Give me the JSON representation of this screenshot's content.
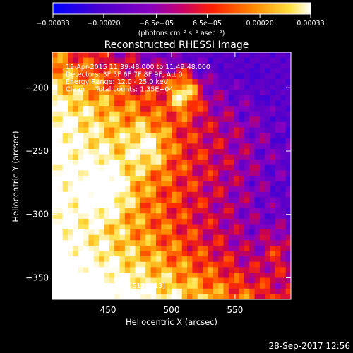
{
  "chart_data": {
    "type": "heatmap",
    "title": "Reconstructed RHESSI Image",
    "xlabel": "Heliocentric X (arcsec)",
    "ylabel": "Heliocentric Y (arcsec)",
    "xlim": [
      406,
      594
    ],
    "ylim": [
      -367,
      -172
    ],
    "x_ticks": [
      450,
      500,
      550
    ],
    "x_tick_labels": [
      "450",
      "500",
      "550"
    ],
    "y_ticks": [
      -200,
      -250,
      -300,
      -350
    ],
    "y_tick_labels": [
      "−200",
      "−250",
      "−300",
      "−350"
    ],
    "colorbar": {
      "range": [
        -0.00033,
        0.00033
      ],
      "ticks": [
        -0.00033,
        -0.0002,
        -6.5e-05,
        6.5e-05,
        0.0002,
        0.00033
      ],
      "tick_labels": [
        "−0.00033",
        "−0.00020",
        "−6.5e−05",
        "6.5e−05",
        "0.00020",
        "0.00033"
      ],
      "units": "(photons cm⁻² s⁻¹ asec⁻²)",
      "colors": [
        "#0000ff",
        "#5a00c8",
        "#8a00c0",
        "#c80050",
        "#ff3000",
        "#ff9000",
        "#ffe040",
        "#ffffff"
      ]
    },
    "annotations": {
      "line1": "19-Apr-2015 11:39:48.000 to 11:49:48.000",
      "line2": "Detectors: 3F 5F 6F 7F 8F 9F, Att 0",
      "line3": "Energy Range: 12.0 - 25.0 keV",
      "line4": "Clean     Total counts: 1.35E+04",
      "peak": "Position of Peak = [512,-213]"
    },
    "peak": [
      512,
      -213
    ],
    "timestamp": "28-Sep-2017 12:56"
  }
}
